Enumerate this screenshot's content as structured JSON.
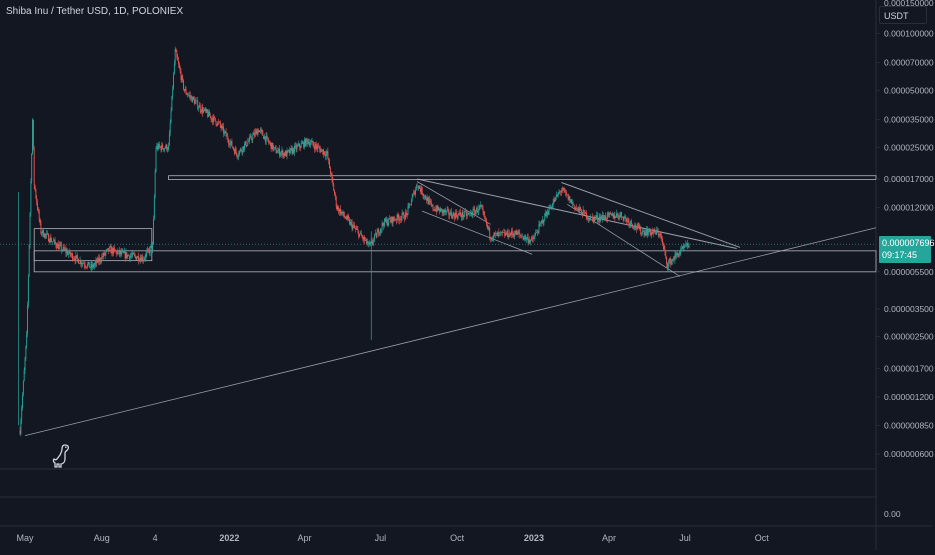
{
  "header": {
    "title": "Shiba Inu / Tether USD, 1D, POLONIEX",
    "currency_label": "USDT"
  },
  "price_scale": {
    "top_cut_label": "0.000150000",
    "current_price": "0.000007696",
    "countdown": "09:17:45",
    "volume_zero": "0.00"
  },
  "colors": {
    "background": "#131722",
    "up": "#26a69a",
    "down": "#ef5350",
    "drawing": "#b2b5be",
    "axis_text": "#b2b5be",
    "divider": "#2a2e39"
  },
  "icons": {
    "watermark": "dino-logo-icon"
  },
  "chart_data": {
    "type": "candlestick",
    "title": "Shiba Inu / Tether USD, 1D, POLONIEX",
    "y_scale": "log",
    "y_range": [
      5e-07,
      0.00015
    ],
    "y_ticks": [
      {
        "value": 0.0001,
        "label": "0.000100000"
      },
      {
        "value": 7e-05,
        "label": "0.000070000"
      },
      {
        "value": 5e-05,
        "label": "0.000050000"
      },
      {
        "value": 3.5e-05,
        "label": "0.000035000"
      },
      {
        "value": 2.5e-05,
        "label": "0.000025000"
      },
      {
        "value": 1.7e-05,
        "label": "0.000017000"
      },
      {
        "value": 1.2e-05,
        "label": "0.000012000"
      },
      {
        "value": 5.5e-06,
        "label": "0.000005500"
      },
      {
        "value": 3.5e-06,
        "label": "0.000003500"
      },
      {
        "value": 2.5e-06,
        "label": "0.000002500"
      },
      {
        "value": 1.7e-06,
        "label": "0.000001700"
      },
      {
        "value": 1.2e-06,
        "label": "0.000001200"
      },
      {
        "value": 8.5e-07,
        "label": "0.000000850"
      },
      {
        "value": 6e-07,
        "label": "0.000000600"
      }
    ],
    "x_ticks": [
      {
        "date": "2021-05-01",
        "label": "May",
        "bold": false
      },
      {
        "date": "2021-08-01",
        "label": "Aug",
        "bold": false
      },
      {
        "date": "2021-10-04",
        "label": "4",
        "bold": false
      },
      {
        "date": "2022-01-01",
        "label": "2022",
        "bold": true
      },
      {
        "date": "2022-04-01",
        "label": "Apr",
        "bold": false
      },
      {
        "date": "2022-07-01",
        "label": "Jul",
        "bold": false
      },
      {
        "date": "2022-10-01",
        "label": "Oct",
        "bold": false
      },
      {
        "date": "2023-01-01",
        "label": "2023",
        "bold": true
      },
      {
        "date": "2023-04-01",
        "label": "Apr",
        "bold": false
      },
      {
        "date": "2023-07-01",
        "label": "Jul",
        "bold": false
      },
      {
        "date": "2023-10-01",
        "label": "Oct",
        "bold": false
      }
    ],
    "x_range": [
      "2021-04-01",
      "2024-02-15"
    ],
    "close_anchors": [
      [
        "2021-04-25",
        8e-07
      ],
      [
        "2021-05-03",
        2.5e-06
      ],
      [
        "2021-05-10",
        3.5e-05
      ],
      [
        "2021-05-12",
        1.6e-05
      ],
      [
        "2021-05-20",
        9e-06
      ],
      [
        "2021-06-10",
        7.5e-06
      ],
      [
        "2021-07-05",
        6.3e-06
      ],
      [
        "2021-07-20",
        5.8e-06
      ],
      [
        "2021-08-10",
        7.2e-06
      ],
      [
        "2021-08-25",
        6.8e-06
      ],
      [
        "2021-09-20",
        6.5e-06
      ],
      [
        "2021-10-01",
        7.5e-06
      ],
      [
        "2021-10-05",
        2.5e-05
      ],
      [
        "2021-10-20",
        2.5e-05
      ],
      [
        "2021-10-28",
        8e-05
      ],
      [
        "2021-11-08",
        5e-05
      ],
      [
        "2021-11-28",
        4e-05
      ],
      [
        "2021-12-20",
        3.3e-05
      ],
      [
        "2022-01-10",
        2.3e-05
      ],
      [
        "2022-02-05",
        3.1e-05
      ],
      [
        "2022-02-25",
        2.4e-05
      ],
      [
        "2022-03-10",
        2.3e-05
      ],
      [
        "2022-04-05",
        2.7e-05
      ],
      [
        "2022-04-28",
        2.3e-05
      ],
      [
        "2022-05-10",
        1.2e-05
      ],
      [
        "2022-06-18",
        7.5e-06
      ],
      [
        "2022-07-05",
        1e-05
      ],
      [
        "2022-08-01",
        1.1e-05
      ],
      [
        "2022-08-14",
        1.6e-05
      ],
      [
        "2022-09-01",
        1.2e-05
      ],
      [
        "2022-09-25",
        1.1e-05
      ],
      [
        "2022-10-15",
        1.1e-05
      ],
      [
        "2022-10-29",
        1.2e-05
      ],
      [
        "2022-11-10",
        8.5e-06
      ],
      [
        "2022-12-10",
        8.8e-06
      ],
      [
        "2022-12-30",
        8e-06
      ],
      [
        "2023-01-15",
        1.1e-05
      ],
      [
        "2023-02-03",
        1.5e-05
      ],
      [
        "2023-02-20",
        1.2e-05
      ],
      [
        "2023-03-10",
        1.05e-05
      ],
      [
        "2023-04-15",
        1.1e-05
      ],
      [
        "2023-05-10",
        9e-06
      ],
      [
        "2023-06-01",
        8.8e-06
      ],
      [
        "2023-06-10",
        6e-06
      ],
      [
        "2023-06-25",
        7e-06
      ],
      [
        "2023-07-06",
        7.696e-06
      ]
    ],
    "drawings": {
      "long_support": {
        "start": [
          "2021-05-01",
          7.5e-07
        ],
        "end": [
          "2024-02-15",
          9.4e-06
        ]
      },
      "range_box": {
        "start": "2021-05-12",
        "end": "2021-09-30",
        "low": 6.3e-06,
        "high": 9.3e-06
      },
      "horizontal_zone": {
        "start": "2021-10-20",
        "low": 1.69e-05,
        "high": 1.77e-05
      },
      "support_band": {
        "start": "2021-05-12",
        "low": 5.5e-06,
        "high": 7.1e-06
      },
      "downtrend_main": {
        "start": [
          "2022-08-14",
          1.7e-05
        ],
        "end": [
          "2023-09-01",
          7.3e-06
        ]
      },
      "downtrend_parallel": {
        "start": [
          "2023-02-03",
          1.63e-05
        ],
        "end": [
          "2023-09-05",
          7.4e-06
        ]
      },
      "channel_1_upper": {
        "start": [
          "2022-08-14",
          1.65e-05
        ],
        "end": [
          "2022-11-10",
          9.8e-06
        ]
      },
      "channel_1_lower": {
        "start": [
          "2022-08-20",
          1.15e-05
        ],
        "end": [
          "2022-12-30",
          6.8e-06
        ]
      },
      "channel_2_lower": {
        "start": [
          "2023-02-10",
          1.25e-05
        ],
        "end": [
          "2023-06-25",
          5.2e-06
        ]
      }
    }
  }
}
